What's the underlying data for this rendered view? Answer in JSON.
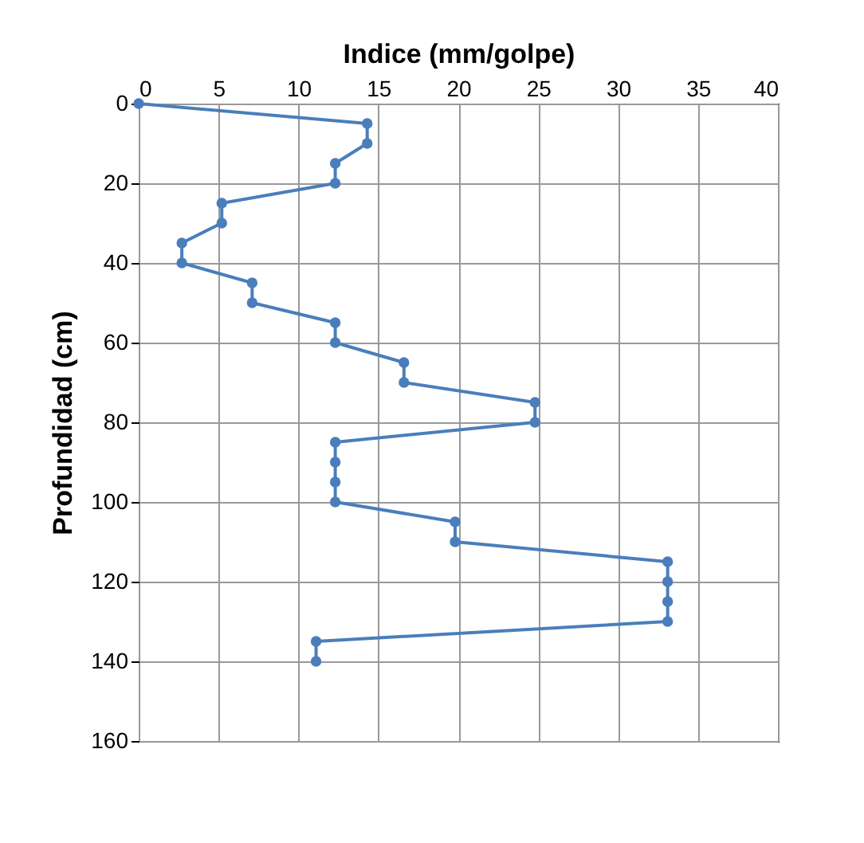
{
  "chart_data": {
    "type": "line",
    "xlabel": "Indice (mm/golpe)",
    "ylabel": "Profundidad (cm)",
    "x": [
      0,
      14.3,
      14.3,
      12.3,
      12.3,
      5.2,
      5.2,
      2.7,
      2.7,
      7.1,
      7.1,
      12.3,
      12.3,
      16.6,
      16.6,
      24.8,
      24.8,
      12.3,
      12.3,
      12.3,
      12.3,
      19.8,
      19.8,
      33.1,
      33.1,
      33.1,
      33.1,
      11.1,
      11.1
    ],
    "series": [
      {
        "color": "#4a7ebb",
        "values": [
          0,
          5,
          10,
          15,
          20,
          25,
          30,
          35,
          40,
          45,
          50,
          55,
          60,
          65,
          70,
          75,
          80,
          85,
          90,
          95,
          100,
          105,
          110,
          115,
          120,
          125,
          130,
          135,
          140
        ]
      }
    ],
    "xlim": [
      0,
      40
    ],
    "xticks": [
      0,
      5,
      10,
      15,
      20,
      25,
      30,
      35,
      40
    ],
    "ylim": [
      160,
      0
    ],
    "yticks": [
      0,
      20,
      40,
      60,
      80,
      100,
      120,
      140,
      160
    ],
    "grid": true,
    "marker": "circle",
    "line_style": "solid"
  }
}
